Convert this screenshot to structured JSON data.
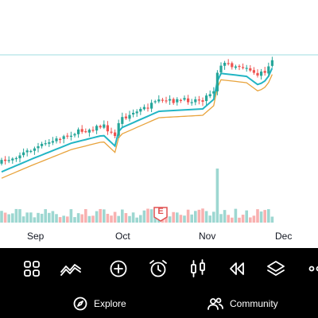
{
  "chart": {
    "x_labels": [
      "Sep",
      "Oct",
      "Nov",
      "Dec"
    ],
    "earnings_marker": "E",
    "colors": {
      "up": "#26a69a",
      "down": "#ef5350",
      "ma_fast": "#22b5c4",
      "ma_slow": "#e8a33c",
      "last_price_line": "#7fd3d6"
    }
  },
  "toolbar": {
    "items": [
      "layout-grid",
      "indicators",
      "add",
      "alert-clock",
      "candle-style",
      "replay",
      "layers",
      "more"
    ]
  },
  "bottom_nav": {
    "explore_label": "Explore",
    "community_label": "Community"
  }
}
